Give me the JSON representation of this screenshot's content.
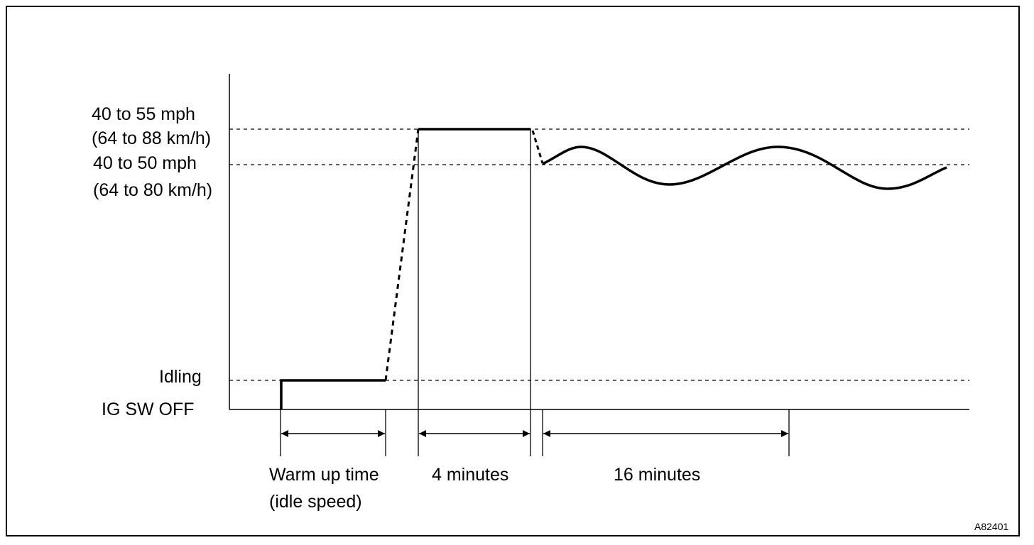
{
  "y_labels": {
    "speed_high_mph": "40 to 55 mph",
    "speed_high_kmh": "(64 to 88 km/h)",
    "speed_low_mph": "40 to 50 mph",
    "speed_low_kmh": "(64 to 80 km/h)",
    "idling": "Idling",
    "ig_sw_off": "IG SW OFF"
  },
  "intervals": {
    "warm_up_line1": "Warm up time",
    "warm_up_line2": "(idle speed)",
    "four_minutes": "4 minutes",
    "sixteen_minutes": "16 minutes"
  },
  "figure_ref": "A82401",
  "colors": {
    "line": "#000000",
    "background": "#ffffff"
  }
}
